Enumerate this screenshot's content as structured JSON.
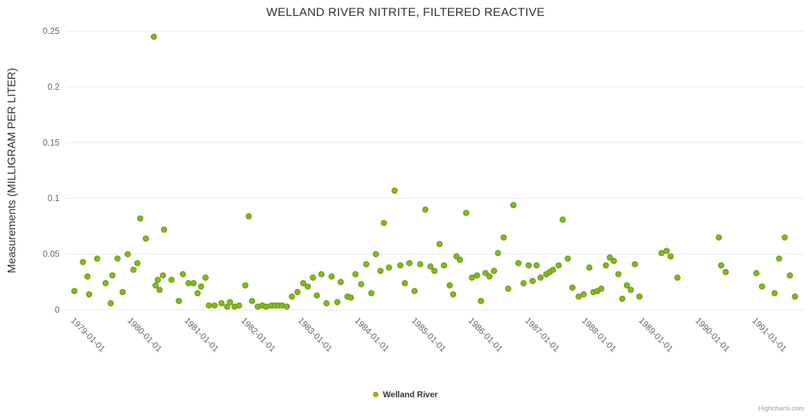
{
  "chart": {
    "title": "WELLAND RIVER NITRITE, FILTERED REACTIVE"
  },
  "legend": {
    "label": "Welland River"
  },
  "credits": {
    "text": "Highcharts.com"
  },
  "style": {
    "grid_color": "#e6e6e6",
    "tick_text_color": "#666666",
    "title_color": "#333333",
    "point_color": "#85b71e",
    "point_stroke": "#6a9417"
  },
  "chart_data": {
    "type": "scatter",
    "title": "WELLAND RIVER NITRITE, FILTERED REACTIVE",
    "xlabel": "",
    "ylabel": "Measurements (MILLIGRAM PER LITER)",
    "xlim": [
      1978.75,
      1991.75
    ],
    "ylim": [
      0,
      0.25
    ],
    "grid": true,
    "legend_position": "bottom",
    "yticks": [
      0,
      0.05,
      0.1,
      0.15,
      0.2,
      0.25
    ],
    "ytick_labels": [
      "0",
      "0.05",
      "0.1",
      "0.15",
      "0.2",
      "0.25"
    ],
    "xticks": [
      {
        "value": 1979,
        "label": "1979-01-01"
      },
      {
        "value": 1980,
        "label": "1980-01-01"
      },
      {
        "value": 1981,
        "label": "1981-01-01"
      },
      {
        "value": 1982,
        "label": "1982-01-01"
      },
      {
        "value": 1983,
        "label": "1983-01-01"
      },
      {
        "value": 1984,
        "label": "1984-01-01"
      },
      {
        "value": 1985,
        "label": "1985-01-01"
      },
      {
        "value": 1986,
        "label": "1986-01-01"
      },
      {
        "value": 1987,
        "label": "1987-01-01"
      },
      {
        "value": 1988,
        "label": "1988-01-01"
      },
      {
        "value": 1989,
        "label": "1989-01-01"
      },
      {
        "value": 1990,
        "label": "1990-01-01"
      },
      {
        "value": 1991,
        "label": "1991-01-01"
      }
    ],
    "series": [
      {
        "name": "Welland River",
        "color": "#85b71e",
        "points": [
          [
            1978.9,
            0.017
          ],
          [
            1979.05,
            0.043
          ],
          [
            1979.13,
            0.03
          ],
          [
            1979.16,
            0.014
          ],
          [
            1979.3,
            0.046
          ],
          [
            1979.45,
            0.024
          ],
          [
            1979.54,
            0.006
          ],
          [
            1979.57,
            0.031
          ],
          [
            1979.66,
            0.046
          ],
          [
            1979.75,
            0.016
          ],
          [
            1979.84,
            0.05
          ],
          [
            1979.94,
            0.036
          ],
          [
            1980.01,
            0.042
          ],
          [
            1980.06,
            0.082
          ],
          [
            1980.16,
            0.064
          ],
          [
            1980.3,
            0.245
          ],
          [
            1980.33,
            0.022
          ],
          [
            1980.37,
            0.027
          ],
          [
            1980.4,
            0.018
          ],
          [
            1980.46,
            0.031
          ],
          [
            1980.48,
            0.072
          ],
          [
            1980.61,
            0.027
          ],
          [
            1980.74,
            0.008
          ],
          [
            1980.81,
            0.032
          ],
          [
            1980.91,
            0.024
          ],
          [
            1981.0,
            0.024
          ],
          [
            1981.07,
            0.015
          ],
          [
            1981.13,
            0.021
          ],
          [
            1981.21,
            0.029
          ],
          [
            1981.27,
            0.004
          ],
          [
            1981.37,
            0.004
          ],
          [
            1981.49,
            0.006
          ],
          [
            1981.59,
            0.003
          ],
          [
            1981.64,
            0.007
          ],
          [
            1981.72,
            0.003
          ],
          [
            1981.8,
            0.004
          ],
          [
            1981.91,
            0.022
          ],
          [
            1981.97,
            0.084
          ],
          [
            1982.03,
            0.008
          ],
          [
            1982.13,
            0.003
          ],
          [
            1982.21,
            0.004
          ],
          [
            1982.28,
            0.003
          ],
          [
            1982.37,
            0.004
          ],
          [
            1982.43,
            0.004
          ],
          [
            1982.49,
            0.004
          ],
          [
            1982.56,
            0.004
          ],
          [
            1982.64,
            0.003
          ],
          [
            1982.73,
            0.012
          ],
          [
            1982.83,
            0.016
          ],
          [
            1982.93,
            0.024
          ],
          [
            1983.01,
            0.021
          ],
          [
            1983.1,
            0.029
          ],
          [
            1983.17,
            0.013
          ],
          [
            1983.25,
            0.032
          ],
          [
            1983.34,
            0.006
          ],
          [
            1983.43,
            0.03
          ],
          [
            1983.53,
            0.007
          ],
          [
            1983.59,
            0.025
          ],
          [
            1983.71,
            0.012
          ],
          [
            1983.77,
            0.011
          ],
          [
            1983.85,
            0.032
          ],
          [
            1983.95,
            0.023
          ],
          [
            1984.04,
            0.041
          ],
          [
            1984.13,
            0.015
          ],
          [
            1984.21,
            0.05
          ],
          [
            1984.29,
            0.035
          ],
          [
            1984.35,
            0.078
          ],
          [
            1984.44,
            0.038
          ],
          [
            1984.54,
            0.107
          ],
          [
            1984.64,
            0.04
          ],
          [
            1984.72,
            0.024
          ],
          [
            1984.8,
            0.042
          ],
          [
            1984.89,
            0.017
          ],
          [
            1984.99,
            0.041
          ],
          [
            1985.08,
            0.09
          ],
          [
            1985.17,
            0.039
          ],
          [
            1985.24,
            0.035
          ],
          [
            1985.33,
            0.059
          ],
          [
            1985.41,
            0.04
          ],
          [
            1985.51,
            0.022
          ],
          [
            1985.57,
            0.014
          ],
          [
            1985.63,
            0.048
          ],
          [
            1985.69,
            0.045
          ],
          [
            1985.8,
            0.087
          ],
          [
            1985.9,
            0.029
          ],
          [
            1985.99,
            0.031
          ],
          [
            1986.06,
            0.008
          ],
          [
            1986.14,
            0.033
          ],
          [
            1986.21,
            0.03
          ],
          [
            1986.29,
            0.035
          ],
          [
            1986.36,
            0.051
          ],
          [
            1986.46,
            0.065
          ],
          [
            1986.54,
            0.019
          ],
          [
            1986.63,
            0.094
          ],
          [
            1986.72,
            0.042
          ],
          [
            1986.81,
            0.024
          ],
          [
            1986.9,
            0.04
          ],
          [
            1986.97,
            0.026
          ],
          [
            1987.04,
            0.04
          ],
          [
            1987.11,
            0.029
          ],
          [
            1987.21,
            0.032
          ],
          [
            1987.27,
            0.034
          ],
          [
            1987.33,
            0.036
          ],
          [
            1987.43,
            0.04
          ],
          [
            1987.5,
            0.081
          ],
          [
            1987.59,
            0.046
          ],
          [
            1987.67,
            0.02
          ],
          [
            1987.78,
            0.012
          ],
          [
            1987.87,
            0.014
          ],
          [
            1987.97,
            0.038
          ],
          [
            1988.04,
            0.016
          ],
          [
            1988.11,
            0.017
          ],
          [
            1988.18,
            0.019
          ],
          [
            1988.26,
            0.04
          ],
          [
            1988.33,
            0.047
          ],
          [
            1988.4,
            0.044
          ],
          [
            1988.48,
            0.032
          ],
          [
            1988.55,
            0.01
          ],
          [
            1988.63,
            0.022
          ],
          [
            1988.7,
            0.018
          ],
          [
            1988.77,
            0.041
          ],
          [
            1988.85,
            0.012
          ],
          [
            1989.24,
            0.051
          ],
          [
            1989.33,
            0.053
          ],
          [
            1989.4,
            0.048
          ],
          [
            1989.52,
            0.029
          ],
          [
            1990.25,
            0.065
          ],
          [
            1990.29,
            0.04
          ],
          [
            1990.37,
            0.034
          ],
          [
            1990.91,
            0.033
          ],
          [
            1991.01,
            0.021
          ],
          [
            1991.23,
            0.015
          ],
          [
            1991.31,
            0.046
          ],
          [
            1991.41,
            0.065
          ],
          [
            1991.5,
            0.031
          ],
          [
            1991.59,
            0.012
          ]
        ]
      }
    ]
  }
}
